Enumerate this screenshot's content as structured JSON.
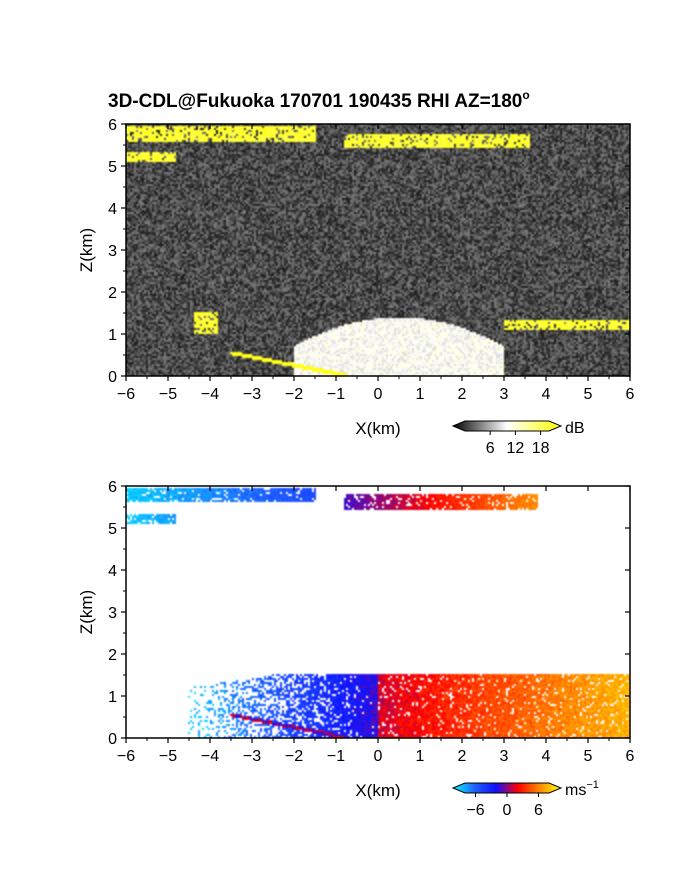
{
  "title": "3D-CDL@Fukuoka 170701 190435 RHI AZ=180",
  "title_degree": "o",
  "chart_data": [
    {
      "type": "heatmap",
      "panel": "SNR",
      "xlabel": "X(km)",
      "ylabel": "Z(km)",
      "xlim": [
        -6,
        6
      ],
      "ylim": [
        0,
        6
      ],
      "xticks": [
        -6,
        -5,
        -4,
        -3,
        -2,
        -1,
        0,
        1,
        2,
        3,
        4,
        5,
        6
      ],
      "yticks": [
        0,
        1,
        2,
        3,
        4,
        5,
        6
      ],
      "colorbar": {
        "unit": "dB",
        "ticks": [
          6,
          12,
          18
        ],
        "range": [
          0,
          20
        ],
        "colors": [
          "#000000",
          "#ffffff",
          "#ffff00"
        ]
      },
      "background_db": 3,
      "features": [
        {
          "name": "upper cloud layer",
          "x": [
            -6.0,
            -1.5
          ],
          "z": [
            5.55,
            5.95
          ],
          "db": 19
        },
        {
          "name": "upper cloud layer",
          "x": [
            -6.0,
            -4.8
          ],
          "z": [
            5.1,
            5.35
          ],
          "db": 19
        },
        {
          "name": "upper cloud layer",
          "x": [
            -0.8,
            3.6
          ],
          "z": [
            5.45,
            5.75
          ],
          "db": 19
        },
        {
          "name": "boundary layer aerosol",
          "x": [
            -2.0,
            3.0
          ],
          "z": [
            0.0,
            1.4
          ],
          "db": 10
        },
        {
          "name": "low cloud",
          "x": [
            -4.4,
            -3.8
          ],
          "z": [
            1.0,
            1.5
          ],
          "db": 19
        },
        {
          "name": "low cloud",
          "x": [
            3.0,
            6.0
          ],
          "z": [
            1.1,
            1.35
          ],
          "db": 19
        },
        {
          "name": "ground return",
          "x": [
            -3.5,
            -0.7
          ],
          "z": [
            0.0,
            0.55
          ],
          "db": 19
        }
      ]
    },
    {
      "type": "heatmap",
      "panel": "Doppler velocity",
      "xlabel": "X(km)",
      "ylabel": "Z(km)",
      "xlim": [
        -6,
        6
      ],
      "ylim": [
        0,
        6
      ],
      "xticks": [
        -6,
        -5,
        -4,
        -3,
        -2,
        -1,
        0,
        1,
        2,
        3,
        4,
        5,
        6
      ],
      "yticks": [
        0,
        1,
        2,
        3,
        4,
        5,
        6
      ],
      "colorbar": {
        "unit": "ms",
        "unit_exponent": "-1",
        "ticks": [
          -6,
          0,
          6
        ],
        "range": [
          -8,
          8
        ],
        "colors": [
          "#00ffff",
          "#2060ff",
          "#1010ff",
          "#ff0000",
          "#ff8800",
          "#ffff00"
        ]
      },
      "features": [
        {
          "name": "upper cloud layer",
          "x": [
            -6.0,
            -1.5
          ],
          "z": [
            5.6,
            5.95
          ],
          "velocity": [
            -7,
            -4
          ]
        },
        {
          "name": "upper cloud layer",
          "x": [
            -6.0,
            -4.8
          ],
          "z": [
            5.1,
            5.35
          ],
          "velocity": [
            -7,
            -6
          ]
        },
        {
          "name": "upper cloud layer",
          "x": [
            -0.8,
            3.8
          ],
          "z": [
            5.45,
            5.8
          ],
          "velocity": [
            -1,
            5
          ]
        },
        {
          "name": "low level flow",
          "x": [
            -4.5,
            0.0
          ],
          "z": [
            0.0,
            1.5
          ],
          "velocity": [
            -7,
            -1
          ]
        },
        {
          "name": "low level flow",
          "x": [
            0.0,
            6.0
          ],
          "z": [
            0.0,
            1.5
          ],
          "velocity": [
            1,
            6
          ]
        },
        {
          "name": "ground return",
          "x": [
            -3.5,
            -0.7
          ],
          "z": [
            0.0,
            0.55
          ],
          "velocity": [
            -1,
            1
          ]
        }
      ]
    }
  ]
}
